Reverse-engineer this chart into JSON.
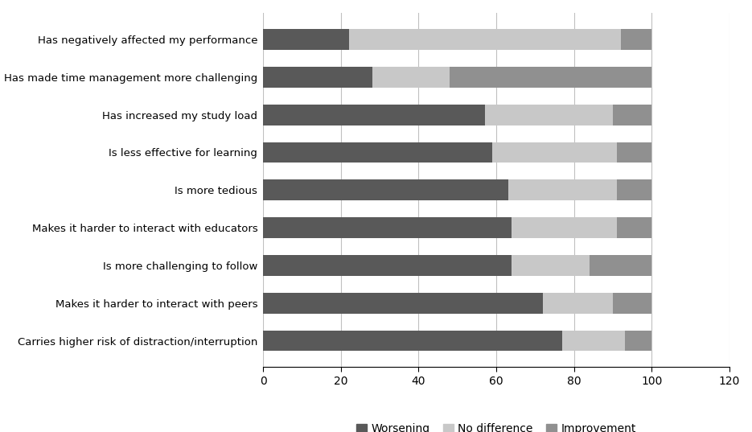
{
  "categories": [
    "Has negatively affected my performance",
    "Has made time management more challenging",
    "Has increased my study load",
    "Is less effective for learning",
    "Is more tedious",
    "Makes it harder to interact with educators",
    "Is more challenging to follow",
    "Makes it harder to interact with peers",
    "Carries higher risk of distraction/interruption"
  ],
  "worsening": [
    22,
    28,
    57,
    59,
    63,
    64,
    64,
    72,
    77
  ],
  "no_difference": [
    70,
    20,
    33,
    32,
    28,
    27,
    20,
    18,
    16
  ],
  "improvement": [
    8,
    52,
    10,
    9,
    9,
    9,
    16,
    10,
    7
  ],
  "colors": {
    "worsening": "#595959",
    "no_difference": "#c8c8c8",
    "improvement": "#909090"
  },
  "legend_labels": [
    "Worsening",
    "No difference",
    "Improvement"
  ],
  "xlim": [
    0,
    120
  ],
  "xticks": [
    0,
    20,
    40,
    60,
    80,
    100,
    120
  ],
  "figure_width": 9.35,
  "figure_height": 5.37,
  "bar_height": 0.55
}
